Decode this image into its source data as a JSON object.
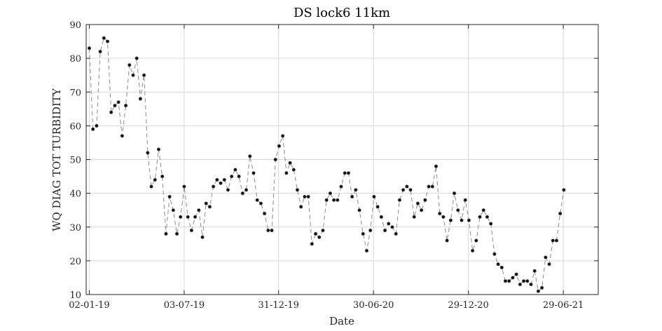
{
  "chart_data": {
    "type": "line",
    "title": "DS lock6 11km",
    "xlabel": "Date",
    "ylabel": "WQ DIAG TOT TURBIDITY",
    "x_start": "02-01-19",
    "x_step_days": 7,
    "x_ticks": [
      "02-01-19",
      "03-07-19",
      "31-12-19",
      "30-06-20",
      "29-12-20",
      "29-06-21"
    ],
    "ylim": [
      10,
      90
    ],
    "y_ticks": [
      10,
      20,
      30,
      40,
      50,
      60,
      70,
      80,
      90
    ],
    "grid": true,
    "colors": {
      "line": "#8c8c8c",
      "marker": "#111111",
      "grid": "#d9d9d9"
    },
    "series": [
      {
        "values": [
          83,
          59,
          60,
          82,
          86,
          85,
          64,
          66,
          67,
          57,
          66,
          78,
          75,
          80,
          68,
          75,
          52,
          42,
          44,
          53,
          45,
          28,
          39,
          35,
          28,
          33,
          42,
          33,
          29,
          33,
          35,
          27,
          37,
          36,
          42,
          44,
          43,
          44,
          41,
          45,
          47,
          45,
          40,
          41,
          51,
          46,
          38,
          37,
          34,
          29,
          29,
          50,
          54,
          57,
          46,
          49,
          47,
          41,
          36,
          39,
          39,
          25,
          28,
          27,
          29,
          38,
          40,
          38,
          38,
          42,
          46,
          46,
          39,
          41,
          35,
          28,
          23,
          29,
          39,
          36,
          33,
          29,
          31,
          30,
          28,
          38,
          41,
          42,
          41,
          33,
          37,
          35,
          38,
          42,
          42,
          48,
          34,
          33,
          26,
          32,
          40,
          35,
          32,
          38,
          32,
          23,
          26,
          33,
          35,
          33,
          31,
          22,
          19,
          18,
          14,
          14,
          15,
          16,
          13,
          14,
          14,
          13,
          17,
          11,
          12,
          21,
          19,
          26,
          26,
          34,
          41
        ]
      }
    ]
  }
}
